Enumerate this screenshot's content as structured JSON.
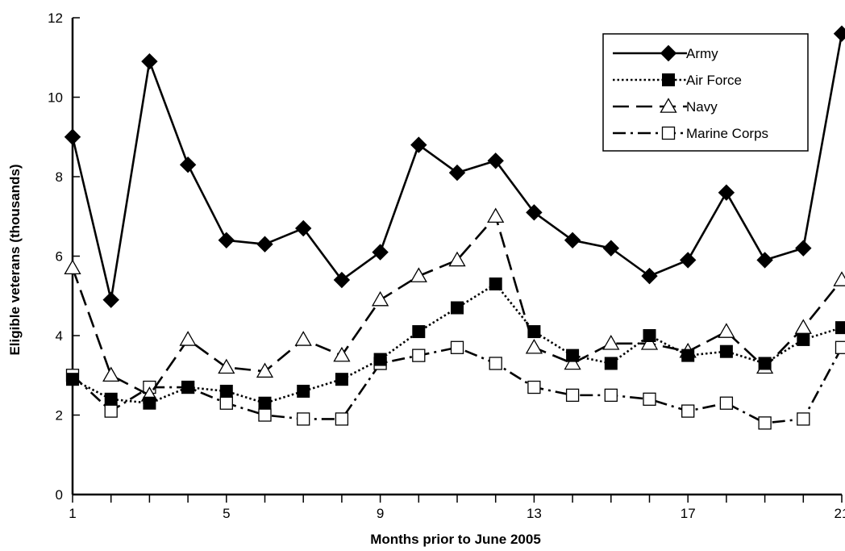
{
  "chart_data": {
    "type": "line",
    "title": "",
    "xlabel": "Months prior to June 2005",
    "ylabel": "Eligible veterans (thousands)",
    "xlim": [
      1,
      21
    ],
    "ylim": [
      0,
      12
    ],
    "x_ticks": [
      1,
      5,
      9,
      13,
      17,
      21
    ],
    "x_tick_labels": [
      "1",
      "5",
      "9",
      "13",
      "17",
      "21"
    ],
    "y_ticks": [
      0,
      2,
      4,
      6,
      8,
      10,
      12
    ],
    "y_tick_labels": [
      "0",
      "2",
      "4",
      "6",
      "8",
      "10",
      "12"
    ],
    "grid": false,
    "legend_position": "top-right",
    "x": [
      1,
      2,
      3,
      4,
      5,
      6,
      7,
      8,
      9,
      10,
      11,
      12,
      13,
      14,
      15,
      16,
      17,
      18,
      19,
      20,
      21
    ],
    "series": [
      {
        "name": "Army",
        "marker": "diamond-filled",
        "dash": "solid",
        "values": [
          9.0,
          4.9,
          10.9,
          8.3,
          6.4,
          6.3,
          6.7,
          5.4,
          6.1,
          8.8,
          8.1,
          8.4,
          7.1,
          6.4,
          6.2,
          5.5,
          5.9,
          7.6,
          5.9,
          6.2,
          11.6
        ]
      },
      {
        "name": "Air Force",
        "marker": "square-filled",
        "dash": "dotted",
        "values": [
          2.9,
          2.4,
          2.3,
          2.7,
          2.6,
          2.3,
          2.6,
          2.9,
          3.4,
          4.1,
          4.7,
          5.3,
          4.1,
          3.5,
          3.3,
          4.0,
          3.5,
          3.6,
          3.3,
          3.9,
          4.2
        ]
      },
      {
        "name": "Navy",
        "marker": "triangle-open",
        "dash": "dashed",
        "values": [
          5.7,
          3.0,
          2.5,
          3.9,
          3.2,
          3.1,
          3.9,
          3.5,
          4.9,
          5.5,
          5.9,
          7.0,
          3.7,
          3.3,
          3.8,
          3.8,
          3.6,
          4.1,
          3.2,
          4.2,
          5.4
        ]
      },
      {
        "name": "Marine Corps",
        "marker": "square-open",
        "dash": "dash-dot",
        "values": [
          3.0,
          2.1,
          2.7,
          2.7,
          2.3,
          2.0,
          1.9,
          1.9,
          3.3,
          3.5,
          3.7,
          3.3,
          2.7,
          2.5,
          2.5,
          2.4,
          2.1,
          2.3,
          1.8,
          1.9,
          3.7
        ]
      }
    ]
  }
}
